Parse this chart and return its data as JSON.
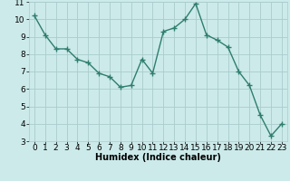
{
  "x": [
    0,
    1,
    2,
    3,
    4,
    5,
    6,
    7,
    8,
    9,
    10,
    11,
    12,
    13,
    14,
    15,
    16,
    17,
    18,
    19,
    20,
    21,
    22,
    23
  ],
  "y": [
    10.2,
    9.1,
    8.3,
    8.3,
    7.7,
    7.5,
    6.9,
    6.7,
    6.1,
    6.2,
    7.7,
    6.9,
    9.3,
    9.5,
    10.0,
    10.9,
    9.1,
    8.8,
    8.4,
    7.0,
    6.2,
    4.5,
    3.3,
    4.0
  ],
  "line_color": "#2e7d6e",
  "marker": "+",
  "marker_size": 4,
  "line_width": 1.0,
  "bg_color": "#cceaea",
  "grid_color": "#aacccc",
  "xlabel": "Humidex (Indice chaleur)",
  "xlim": [
    -0.5,
    23.5
  ],
  "ylim": [
    3,
    11
  ],
  "yticks": [
    3,
    4,
    5,
    6,
    7,
    8,
    9,
    10,
    11
  ],
  "xticks": [
    0,
    1,
    2,
    3,
    4,
    5,
    6,
    7,
    8,
    9,
    10,
    11,
    12,
    13,
    14,
    15,
    16,
    17,
    18,
    19,
    20,
    21,
    22,
    23
  ],
  "xlabel_fontsize": 7,
  "tick_fontsize": 6.5
}
